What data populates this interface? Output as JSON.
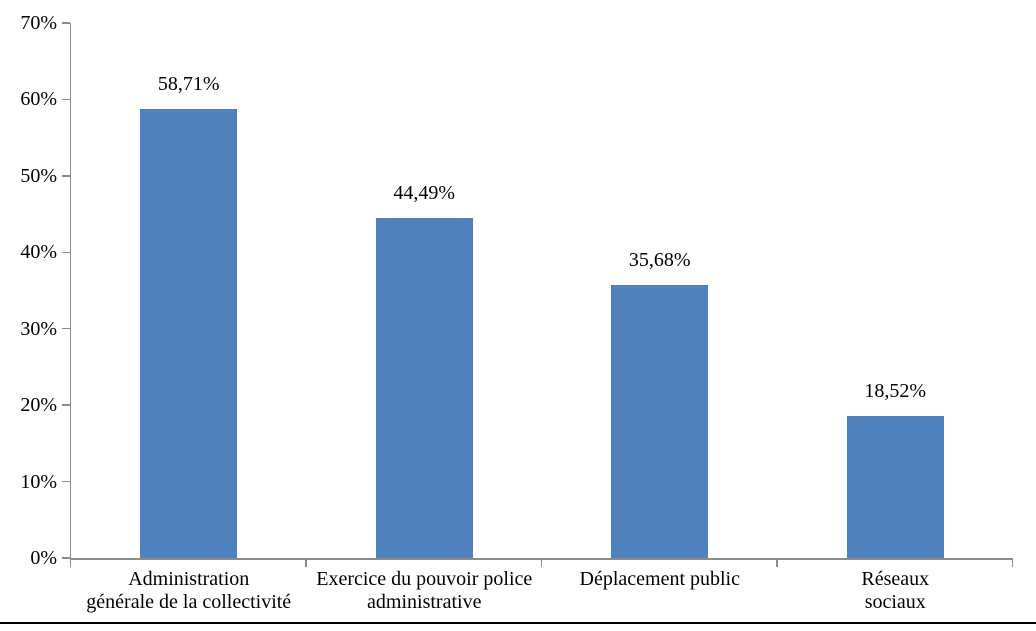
{
  "chart_data": {
    "type": "bar",
    "title": "",
    "xlabel": "",
    "ylabel": "",
    "categories": [
      "Administration générale de la collectivité",
      "Exercice du pouvoir police administrative",
      "Déplacement public",
      "Réseaux sociaux"
    ],
    "category_display_lines": [
      [
        "Administration",
        "générale de la collectivité"
      ],
      [
        "Exercice du pouvoir police",
        "administrative"
      ],
      [
        "Déplacement public"
      ],
      [
        "Réseaux",
        "sociaux"
      ]
    ],
    "values": [
      58.71,
      44.49,
      35.68,
      18.52
    ],
    "data_labels": [
      "58,71%",
      "44,49%",
      "35,68%",
      "18,52%"
    ],
    "ylim": [
      0,
      70
    ],
    "ytick_step": 10,
    "ytick_labels": [
      "0%",
      "10%",
      "20%",
      "30%",
      "40%",
      "50%",
      "60%",
      "70%"
    ],
    "grid": false,
    "legend": "none",
    "colors": {
      "bar": "#4F81BD",
      "axis": "#8C8C8C",
      "text": "#000000",
      "background": "#FFFFFF",
      "bottom_border": "#000000"
    }
  }
}
